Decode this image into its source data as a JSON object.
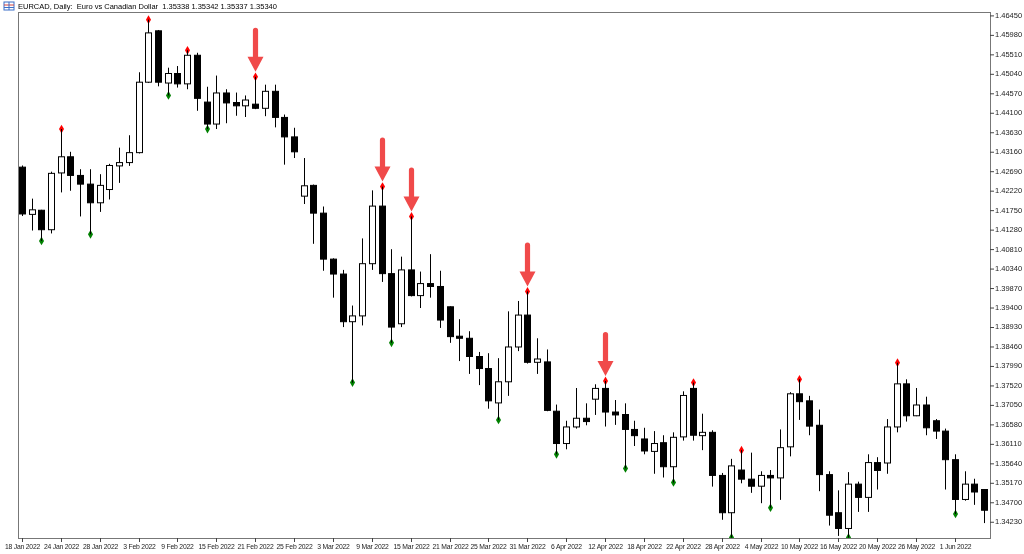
{
  "chart_data": {
    "type": "candlestick",
    "title": "EURCAD, Daily:  Euro vs Canadian Dollar  1.35338 1.35342 1.35337 1.35340",
    "categories": [
      "18 Jan 2022",
      null,
      null,
      null,
      "24 Jan 2022",
      null,
      null,
      null,
      "28 Jan 2022",
      null,
      null,
      null,
      "3 Feb 2022",
      null,
      null,
      null,
      "9 Feb 2022",
      null,
      null,
      null,
      "15 Feb 2022",
      null,
      null,
      null,
      "21 Feb 2022",
      null,
      null,
      null,
      "25 Feb 2022",
      null,
      null,
      null,
      "3 Mar 2022",
      null,
      null,
      null,
      "9 Mar 2022",
      null,
      null,
      null,
      "15 Mar 2022",
      null,
      null,
      null,
      "21 Mar 2022",
      null,
      null,
      null,
      "25 Mar 2022",
      null,
      null,
      null,
      "31 Mar 2022",
      null,
      null,
      null,
      "6 Apr 2022",
      null,
      null,
      null,
      "12 Apr 2022",
      null,
      null,
      null,
      "18 Apr 2022",
      null,
      null,
      null,
      "22 Apr 2022",
      null,
      null,
      null,
      "28 Apr 2022",
      null,
      null,
      null,
      "4 May 2022",
      null,
      null,
      null,
      "10 May 2022",
      null,
      null,
      null,
      "16 May 2022",
      null,
      null,
      null,
      "20 May 2022",
      null,
      null,
      null,
      "26 May 2022",
      null,
      null,
      null,
      "1 Jun 2022",
      null,
      null,
      null
    ],
    "ohlc": [
      [
        1.428,
        1.4284,
        1.4162,
        1.4167
      ],
      [
        1.4166,
        1.4204,
        1.4127,
        1.4177
      ],
      [
        1.4176,
        1.4177,
        1.4102,
        1.4129
      ],
      [
        1.4129,
        1.4269,
        1.412,
        1.4265
      ],
      [
        1.4266,
        1.4372,
        1.4219,
        1.4305
      ],
      [
        1.4305,
        1.4317,
        1.4223,
        1.426
      ],
      [
        1.426,
        1.4275,
        1.4161,
        1.4239
      ],
      [
        1.4239,
        1.4275,
        1.4118,
        1.4194
      ],
      [
        1.4194,
        1.4263,
        1.4172,
        1.4236
      ],
      [
        1.4226,
        1.4288,
        1.4202,
        1.4284
      ],
      [
        1.4283,
        1.4327,
        1.4242,
        1.4291
      ],
      [
        1.4291,
        1.4357,
        1.4283,
        1.4315
      ],
      [
        1.4315,
        1.4509,
        1.4313,
        1.4485
      ],
      [
        1.4485,
        1.4636,
        1.4483,
        1.4604
      ],
      [
        1.4609,
        1.4611,
        1.4475,
        1.4485
      ],
      [
        1.4483,
        1.452,
        1.4453,
        1.4506
      ],
      [
        1.4506,
        1.4524,
        1.4472,
        1.4481
      ],
      [
        1.4481,
        1.4562,
        1.4468,
        1.455
      ],
      [
        1.455,
        1.4556,
        1.4416,
        1.4446
      ],
      [
        1.4437,
        1.4474,
        1.4372,
        1.4384
      ],
      [
        1.4384,
        1.4501,
        1.4372,
        1.4459
      ],
      [
        1.4459,
        1.4468,
        1.4386,
        1.4435
      ],
      [
        1.4436,
        1.446,
        1.4404,
        1.4428
      ],
      [
        1.4428,
        1.4453,
        1.4401,
        1.4442
      ],
      [
        1.4432,
        1.4498,
        1.442,
        1.4422
      ],
      [
        1.4422,
        1.4479,
        1.4403,
        1.4463
      ],
      [
        1.4463,
        1.4479,
        1.4376,
        1.44
      ],
      [
        1.44,
        1.4407,
        1.4286,
        1.4353
      ],
      [
        1.4353,
        1.4375,
        1.4302,
        1.4317
      ],
      [
        1.421,
        1.4302,
        1.4191,
        1.4235
      ],
      [
        1.4236,
        1.4238,
        1.4095,
        1.4169
      ],
      [
        1.4169,
        1.4185,
        1.403,
        1.4058
      ],
      [
        1.4058,
        1.406,
        1.3965,
        1.4022
      ],
      [
        1.4022,
        1.4032,
        1.3894,
        1.3907
      ],
      [
        1.3907,
        1.3946,
        1.376,
        1.3921
      ],
      [
        1.3921,
        1.4108,
        1.3898,
        1.4047
      ],
      [
        1.4047,
        1.4224,
        1.4032,
        1.4186
      ],
      [
        1.4186,
        1.4233,
        1.4003,
        1.4023
      ],
      [
        1.4023,
        1.4082,
        1.3856,
        1.3894
      ],
      [
        1.3902,
        1.4064,
        1.3894,
        1.4032
      ],
      [
        1.4032,
        1.4161,
        1.3968,
        1.397
      ],
      [
        1.397,
        1.4028,
        1.394,
        1.3999
      ],
      [
        1.3999,
        1.407,
        1.3965,
        1.3992
      ],
      [
        1.3992,
        1.403,
        1.3892,
        1.3911
      ],
      [
        1.3943,
        1.3944,
        1.3856,
        1.3871
      ],
      [
        1.3872,
        1.3913,
        1.3812,
        1.3867
      ],
      [
        1.3867,
        1.3884,
        1.3781,
        1.3823
      ],
      [
        1.3823,
        1.3834,
        1.3754,
        1.3794
      ],
      [
        1.3794,
        1.3831,
        1.3697,
        1.3716
      ],
      [
        1.3711,
        1.3819,
        1.367,
        1.3762
      ],
      [
        1.3762,
        1.3932,
        1.3728,
        1.3846
      ],
      [
        1.3846,
        1.3957,
        1.3836,
        1.3923
      ],
      [
        1.3923,
        1.398,
        1.3806,
        1.3809
      ],
      [
        1.3809,
        1.3867,
        1.3781,
        1.3817
      ],
      [
        1.381,
        1.384,
        1.3691,
        1.3693
      ],
      [
        1.3691,
        1.3707,
        1.3587,
        1.3613
      ],
      [
        1.3613,
        1.3668,
        1.3599,
        1.3653
      ],
      [
        1.3653,
        1.3747,
        1.3649,
        1.3674
      ],
      [
        1.3674,
        1.371,
        1.3657,
        1.3666
      ],
      [
        1.372,
        1.3756,
        1.3682,
        1.3746
      ],
      [
        1.3746,
        1.3764,
        1.3654,
        1.3689
      ],
      [
        1.3689,
        1.3718,
        1.3658,
        1.3682
      ],
      [
        1.3683,
        1.371,
        1.3553,
        1.3647
      ],
      [
        1.3647,
        1.3668,
        1.3607,
        1.3632
      ],
      [
        1.3624,
        1.3651,
        1.3587,
        1.3595
      ],
      [
        1.3594,
        1.3643,
        1.354,
        1.3613
      ],
      [
        1.3615,
        1.3633,
        1.3531,
        1.3557
      ],
      [
        1.3557,
        1.364,
        1.3519,
        1.3628
      ],
      [
        1.3629,
        1.3739,
        1.362,
        1.3729
      ],
      [
        1.3746,
        1.376,
        1.362,
        1.3633
      ],
      [
        1.3632,
        1.3685,
        1.3597,
        1.364
      ],
      [
        1.364,
        1.3645,
        1.3509,
        1.3536
      ],
      [
        1.3536,
        1.3542,
        1.3429,
        1.3446
      ],
      [
        1.3446,
        1.3576,
        1.3386,
        1.3559
      ],
      [
        1.3549,
        1.3597,
        1.3517,
        1.3527
      ],
      [
        1.3527,
        1.3591,
        1.3494,
        1.351
      ],
      [
        1.351,
        1.3546,
        1.3469,
        1.3536
      ],
      [
        1.3536,
        1.3549,
        1.3458,
        1.353
      ],
      [
        1.353,
        1.3647,
        1.3477,
        1.3603
      ],
      [
        1.3605,
        1.3737,
        1.3582,
        1.3733
      ],
      [
        1.3733,
        1.3768,
        1.367,
        1.3714
      ],
      [
        1.3716,
        1.3728,
        1.3633,
        1.3655
      ],
      [
        1.3657,
        1.3695,
        1.3498,
        1.3538
      ],
      [
        1.3538,
        1.3546,
        1.3415,
        1.344
      ],
      [
        1.3446,
        1.35,
        1.339,
        1.3408
      ],
      [
        1.3408,
        1.3544,
        1.3386,
        1.3515
      ],
      [
        1.3515,
        1.3521,
        1.3448,
        1.3483
      ],
      [
        1.3483,
        1.3587,
        1.3448,
        1.3567
      ],
      [
        1.3567,
        1.358,
        1.3502,
        1.3548
      ],
      [
        1.3566,
        1.3672,
        1.354,
        1.3653
      ],
      [
        1.3653,
        1.3808,
        1.364,
        1.3757
      ],
      [
        1.3757,
        1.3768,
        1.3666,
        1.368
      ],
      [
        1.368,
        1.3747,
        1.3679,
        1.3706
      ],
      [
        1.3706,
        1.3726,
        1.3633,
        1.3651
      ],
      [
        1.3668,
        1.3672,
        1.3624,
        1.3643
      ],
      [
        1.3643,
        1.3649,
        1.3502,
        1.3574
      ],
      [
        1.3574,
        1.3587,
        1.3443,
        1.3478
      ],
      [
        1.3478,
        1.3546,
        1.3475,
        1.3515
      ],
      [
        1.3515,
        1.3528,
        1.3465,
        1.3496
      ],
      [
        1.3502,
        1.3503,
        1.3421,
        1.3452
      ]
    ],
    "series": [
      {
        "type": "scatter",
        "color": "#ff0000",
        "values": [
          null,
          null,
          null,
          null,
          1.4372,
          null,
          null,
          null,
          null,
          null,
          null,
          null,
          null,
          1.4636,
          null,
          null,
          null,
          1.4562,
          null,
          null,
          null,
          null,
          null,
          null,
          1.4498,
          null,
          null,
          null,
          null,
          null,
          null,
          null,
          null,
          null,
          null,
          null,
          null,
          1.4233,
          null,
          null,
          1.4161,
          null,
          null,
          null,
          null,
          null,
          null,
          null,
          null,
          null,
          null,
          null,
          1.398,
          null,
          null,
          null,
          null,
          null,
          null,
          null,
          1.3764,
          null,
          null,
          null,
          null,
          null,
          null,
          null,
          null,
          1.376,
          null,
          null,
          null,
          null,
          1.3597,
          null,
          null,
          null,
          null,
          null,
          1.3768,
          null,
          null,
          null,
          null,
          null,
          null,
          null,
          null,
          null,
          1.3808,
          null,
          null,
          null,
          null,
          null,
          null,
          null,
          null,
          null
        ]
      },
      {
        "type": "scatter",
        "color": "#008000",
        "values": [
          null,
          null,
          1.4102,
          null,
          null,
          null,
          null,
          1.4118,
          null,
          null,
          null,
          null,
          null,
          null,
          null,
          1.4453,
          null,
          null,
          null,
          1.4372,
          null,
          null,
          null,
          null,
          null,
          null,
          null,
          null,
          null,
          null,
          null,
          null,
          null,
          null,
          1.376,
          null,
          null,
          null,
          1.3856,
          null,
          null,
          null,
          null,
          null,
          null,
          null,
          null,
          null,
          null,
          1.367,
          null,
          null,
          null,
          null,
          null,
          1.3587,
          null,
          null,
          null,
          null,
          null,
          null,
          1.3553,
          null,
          null,
          null,
          null,
          1.3519,
          null,
          null,
          null,
          null,
          null,
          1.3386,
          null,
          null,
          null,
          1.3458,
          null,
          null,
          null,
          null,
          null,
          null,
          null,
          1.3386,
          null,
          null,
          null,
          null,
          null,
          null,
          null,
          null,
          null,
          null,
          1.3443,
          null,
          null,
          null
        ]
      }
    ],
    "marker": "diamond",
    "ylim": [
      1.3385,
      1.4652
    ],
    "yticks": [
      {
        "value": 1.4645,
        "label": "1.46450"
      },
      {
        "value": 1.4598,
        "label": "1.45980"
      },
      {
        "value": 1.4551,
        "label": "1.45510"
      },
      {
        "value": 1.4504,
        "label": "1.45040"
      },
      {
        "value": 1.4457,
        "label": "1.44570"
      },
      {
        "value": 1.441,
        "label": "1.44100"
      },
      {
        "value": 1.4363,
        "label": "1.43630"
      },
      {
        "value": 1.4316,
        "label": "1.43160"
      },
      {
        "value": 1.4269,
        "label": "1.42690"
      },
      {
        "value": 1.4222,
        "label": "1.42220"
      },
      {
        "value": 1.4175,
        "label": "1.41750"
      },
      {
        "value": 1.4128,
        "label": "1.41280"
      },
      {
        "value": 1.4081,
        "label": "1.40810"
      },
      {
        "value": 1.4034,
        "label": "1.40340"
      },
      {
        "value": 1.3987,
        "label": "1.39870"
      },
      {
        "value": 1.394,
        "label": "1.39400"
      },
      {
        "value": 1.3893,
        "label": "1.38930"
      },
      {
        "value": 1.3846,
        "label": "1.38460"
      },
      {
        "value": 1.3799,
        "label": "1.37990"
      },
      {
        "value": 1.3752,
        "label": "1.37520"
      },
      {
        "value": 1.3705,
        "label": "1.37050"
      },
      {
        "value": 1.3658,
        "label": "1.36580"
      },
      {
        "value": 1.3611,
        "label": "1.36110"
      },
      {
        "value": 1.3564,
        "label": "1.35640"
      },
      {
        "value": 1.3517,
        "label": "1.35170"
      },
      {
        "value": 1.347,
        "label": "1.34700"
      },
      {
        "value": 1.3423,
        "label": "1.34230"
      }
    ]
  }
}
